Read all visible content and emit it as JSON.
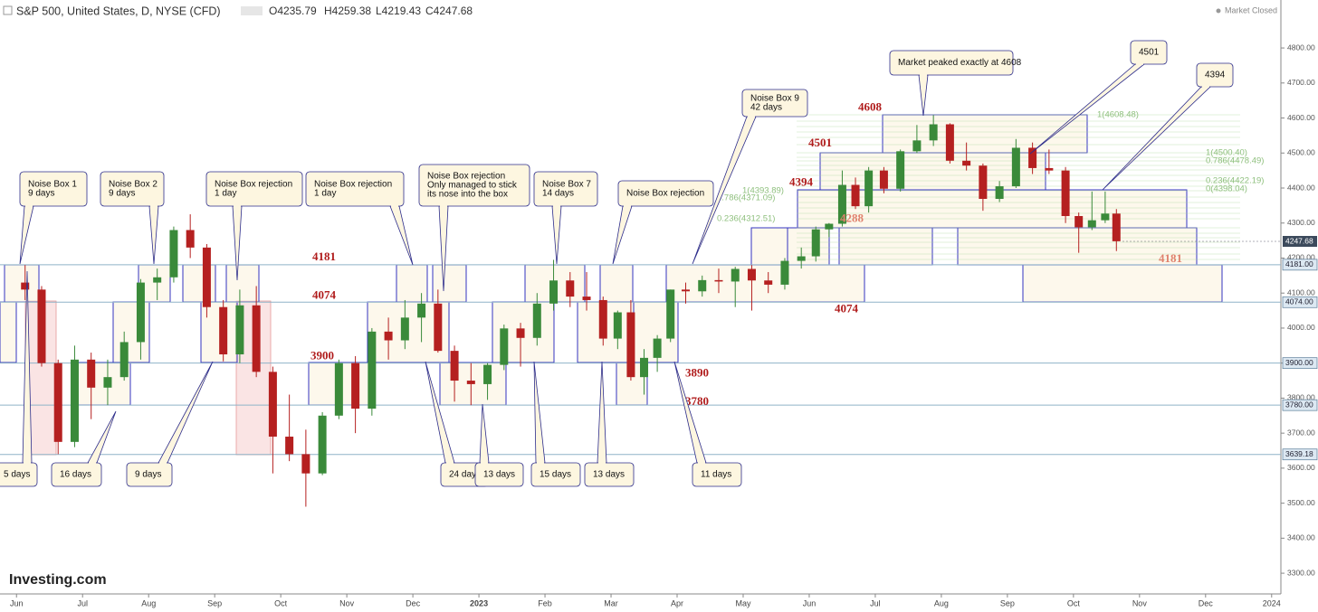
{
  "header": {
    "symbol": "S&P 500, United States, D, NYSE (CFD)",
    "open": "O4235.79",
    "high": "H4259.38",
    "low": "L4219.43",
    "close": "C4247.68",
    "status": "Market Closed",
    "brand": "Investing.com"
  },
  "chart_data": {
    "type": "candlestick",
    "x": [
      0.13,
      0.38,
      0.63,
      0.88,
      1.13,
      1.38,
      1.63,
      1.88,
      2.13,
      2.38,
      2.63,
      2.88,
      3.13,
      3.38,
      3.63,
      3.88,
      4.13,
      4.38,
      4.63,
      4.88,
      5.13,
      5.38,
      5.63,
      5.88,
      6.13,
      6.38,
      6.63,
      6.88,
      7.13,
      7.38,
      7.63,
      7.88,
      8.13,
      8.38,
      8.63,
      8.88,
      9.1,
      9.3,
      9.5,
      9.7,
      9.9,
      10.13,
      10.38,
      10.63,
      10.88,
      11.13,
      11.38,
      11.63,
      11.88,
      12.1,
      12.3,
      12.5,
      12.7,
      12.9,
      13.13,
      13.38,
      13.63,
      13.88,
      14.13,
      14.38,
      14.63,
      14.88,
      15.13,
      15.38,
      15.63,
      15.88,
      16.08,
      16.28,
      16.48,
      16.65
    ],
    "open": [
      4130,
      4110,
      3900,
      3675,
      3910,
      3830,
      3860,
      3960,
      4130,
      4145,
      4280,
      4230,
      4060,
      3925,
      4065,
      3875,
      3690,
      3640,
      3585,
      3750,
      3900,
      3770,
      3990,
      3965,
      4030,
      4070,
      3935,
      3850,
      3840,
      3895,
      3999,
      3972,
      4070,
      4136,
      4090,
      4080,
      3970,
      4045,
      3860,
      3915,
      3970,
      4110,
      4105,
      4137,
      4133,
      4169,
      4136,
      4124,
      4192,
      4205,
      4282,
      4298,
      4409,
      4348,
      4450,
      4398,
      4505,
      4536,
      4582,
      4478,
      4464,
      4369,
      4405,
      4515,
      4457,
      4450,
      4320,
      4288,
      4308,
      4327
    ],
    "high": [
      4180,
      4120,
      3910,
      3950,
      3930,
      3910,
      3990,
      4140,
      4170,
      4290,
      4325,
      4240,
      4080,
      4110,
      4120,
      3890,
      3810,
      3710,
      3760,
      3910,
      3920,
      4000,
      4030,
      4080,
      4100,
      4110,
      3950,
      3900,
      3900,
      4010,
      4015,
      4100,
      4195,
      4160,
      4160,
      4090,
      4050,
      4080,
      3940,
      3980,
      4110,
      4130,
      4150,
      4170,
      4175,
      4180,
      4160,
      4200,
      4230,
      4290,
      4300,
      4450,
      4430,
      4460,
      4460,
      4510,
      4580,
      4608,
      4585,
      4530,
      4470,
      4420,
      4540,
      4530,
      4510,
      4460,
      4330,
      4390,
      4390,
      4340
    ],
    "low": [
      4080,
      3890,
      3640,
      3660,
      3740,
      3780,
      3850,
      3910,
      4080,
      4130,
      4200,
      4030,
      3905,
      3900,
      3860,
      3585,
      3620,
      3490,
      3580,
      3740,
      3700,
      3750,
      3910,
      3940,
      3960,
      3930,
      3790,
      3780,
      3795,
      3880,
      3890,
      3950,
      4050,
      4060,
      4050,
      3950,
      3940,
      3850,
      3810,
      3875,
      3960,
      4070,
      4090,
      4100,
      4060,
      4050,
      4100,
      4110,
      4170,
      4190,
      4260,
      4290,
      4340,
      4330,
      4385,
      4390,
      4500,
      4520,
      4470,
      4450,
      4335,
      4360,
      4400,
      4440,
      4440,
      4300,
      4215,
      4280,
      4300,
      4220
    ],
    "close": [
      4110,
      3900,
      3675,
      3910,
      3830,
      3860,
      3960,
      4130,
      4145,
      4280,
      4230,
      4060,
      3925,
      4065,
      3875,
      3690,
      3640,
      3585,
      3750,
      3900,
      3770,
      3990,
      3965,
      4030,
      4070,
      3935,
      3850,
      3840,
      3895,
      3999,
      3972,
      4070,
      4136,
      4090,
      4080,
      3970,
      4045,
      3860,
      3915,
      3970,
      4110,
      4105,
      4137,
      4133,
      4169,
      4136,
      4124,
      4192,
      4205,
      4282,
      4298,
      4409,
      4348,
      4450,
      4398,
      4505,
      4536,
      4582,
      4478,
      4464,
      4369,
      4405,
      4515,
      4457,
      4450,
      4320,
      4288,
      4308,
      4327,
      4248
    ],
    "up_color": "#3a8a3a",
    "down_color": "#b52020",
    "xlim": [
      -0.25,
      19.14
    ],
    "xticks": [
      {
        "value": 0,
        "label": "Jun"
      },
      {
        "value": 1,
        "label": "Jul"
      },
      {
        "value": 2,
        "label": "Aug"
      },
      {
        "value": 3,
        "label": "Sep"
      },
      {
        "value": 4,
        "label": "Oct"
      },
      {
        "value": 5,
        "label": "Nov"
      },
      {
        "value": 6,
        "label": "Dec"
      },
      {
        "value": 7,
        "label": "2023"
      },
      {
        "value": 8,
        "label": "Feb"
      },
      {
        "value": 9,
        "label": "Mar"
      },
      {
        "value": 10,
        "label": "Apr"
      },
      {
        "value": 11,
        "label": "May"
      },
      {
        "value": 12,
        "label": "Jun"
      },
      {
        "value": 13,
        "label": "Jul"
      },
      {
        "value": 14,
        "label": "Aug"
      },
      {
        "value": 15,
        "label": "Sep"
      },
      {
        "value": 16,
        "label": "Oct"
      },
      {
        "value": 17,
        "label": "Nov"
      },
      {
        "value": 18,
        "label": "Dec"
      },
      {
        "value": 19,
        "label": "2024"
      }
    ],
    "ylim": [
      3246,
      4937
    ],
    "yticks": [
      {
        "value": 3300,
        "label": "3300.00"
      },
      {
        "value": 3400,
        "label": "3400.00"
      },
      {
        "value": 3500,
        "label": "3500.00"
      },
      {
        "value": 3600,
        "label": "3600.00"
      },
      {
        "value": 3700,
        "label": "3700.00"
      },
      {
        "value": 3800,
        "label": "3800.00"
      },
      {
        "value": 3900,
        "label": "3900.00"
      },
      {
        "value": 4000,
        "label": "4000.00"
      },
      {
        "value": 4100,
        "label": "4100.00"
      },
      {
        "value": 4200,
        "label": "4200.00"
      },
      {
        "value": 4300,
        "label": "4300.00"
      },
      {
        "value": 4400,
        "label": "4400.00"
      },
      {
        "value": 4500,
        "label": "4500.00"
      },
      {
        "value": 4600,
        "label": "4600.00"
      },
      {
        "value": 4700,
        "label": "4700.00"
      },
      {
        "value": 4800,
        "label": "4800.00"
      }
    ],
    "price_lines": [
      {
        "value": 4181,
        "label": "4181.00"
      },
      {
        "value": 4074,
        "label": "4074.00"
      },
      {
        "value": 3900,
        "label": "3900.00"
      },
      {
        "value": 3780,
        "label": "3780.00"
      },
      {
        "value": 3639.18,
        "label": "3639.18"
      }
    ],
    "last_price": {
      "value": 4247.68,
      "label": "4247.68"
    },
    "level_labels": [
      4181,
      4074,
      3900,
      3890,
      3780,
      4608,
      4501,
      4394,
      4288,
      4181,
      4074
    ],
    "fib_labels": [
      "1(4608.48)",
      "1(4500.40)",
      "0.786(4478.49)",
      "0.236(4422.19)",
      "0(4398.04)",
      "1(4393.89)",
      "0.786(4371.09)",
      "0.236(4312.51)"
    ],
    "callouts": [
      [
        "Noise Box 1",
        "9 days"
      ],
      [
        "Noise Box 2",
        "9 days"
      ],
      [
        "Noise Box rejection",
        "1 day"
      ],
      [
        "Noise Box rejection",
        "1 day"
      ],
      [
        "Noise Box rejection",
        "Only managed to stick",
        "its nose into the box"
      ],
      [
        "Noise Box 7",
        "14 days"
      ],
      [
        "Noise Box rejection"
      ],
      [
        "Noise Box 9",
        "42 days"
      ],
      [
        "Market peaked exactly at 4608"
      ],
      [
        "4501"
      ],
      [
        "4394"
      ],
      [
        "5 days"
      ],
      [
        "16 days"
      ],
      [
        "9 days"
      ],
      [
        "24 days"
      ],
      [
        "13 days"
      ],
      [
        "15 days"
      ],
      [
        "13 days"
      ],
      [
        "11 days"
      ]
    ]
  }
}
